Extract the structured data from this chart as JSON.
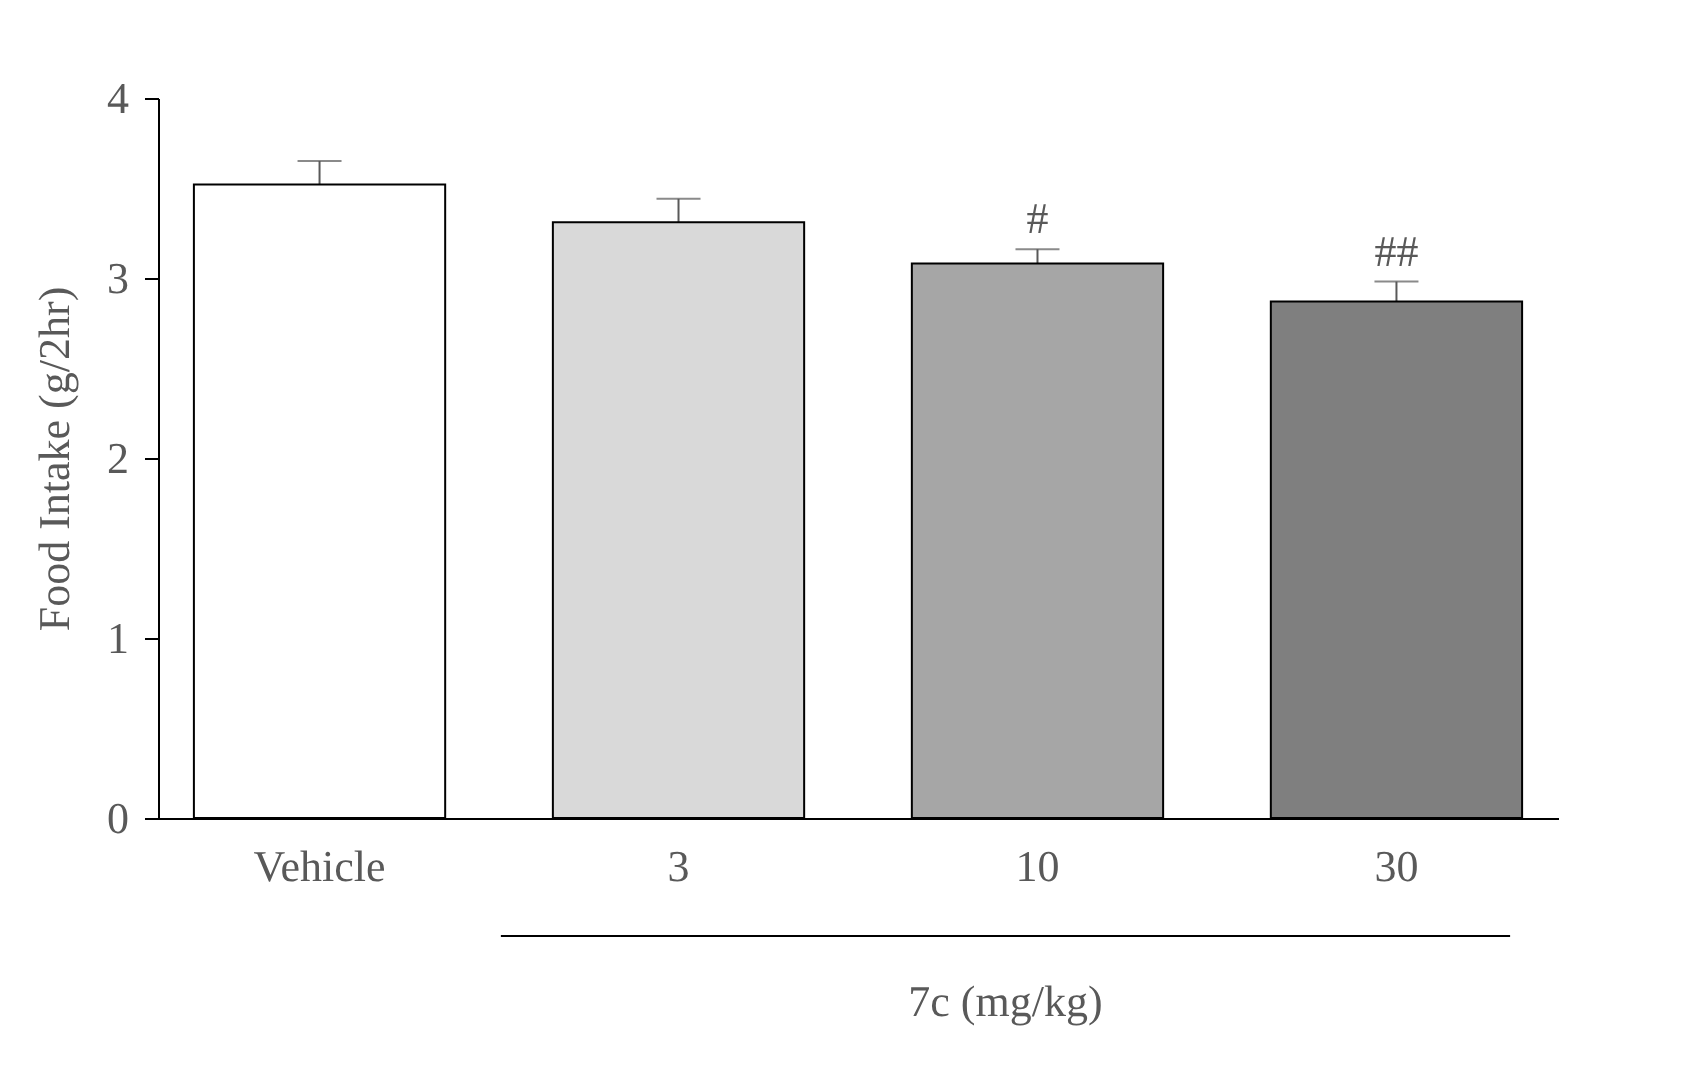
{
  "chart_data": {
    "type": "bar",
    "ylabel": "Food Intake (g/2hr)",
    "xlabel": "7c (mg/kg)",
    "categories": [
      "Vehicle",
      "3",
      "10",
      "30"
    ],
    "values": [
      3.52,
      3.31,
      3.08,
      2.87
    ],
    "colors": [
      "#ffffff",
      "#d9d9d9",
      "#a6a6a6",
      "#7f7f7f"
    ],
    "errors": [
      0.13,
      0.13,
      0.08,
      0.11
    ],
    "ylim": [
      0,
      4
    ],
    "yticks": [
      0,
      1,
      2,
      3,
      4
    ],
    "grid": false,
    "legend": false,
    "annotations": [
      {
        "text": "#",
        "x": "10",
        "y": 3.16
      },
      {
        "text": "##",
        "x": "30",
        "y": 2.98
      }
    ]
  }
}
